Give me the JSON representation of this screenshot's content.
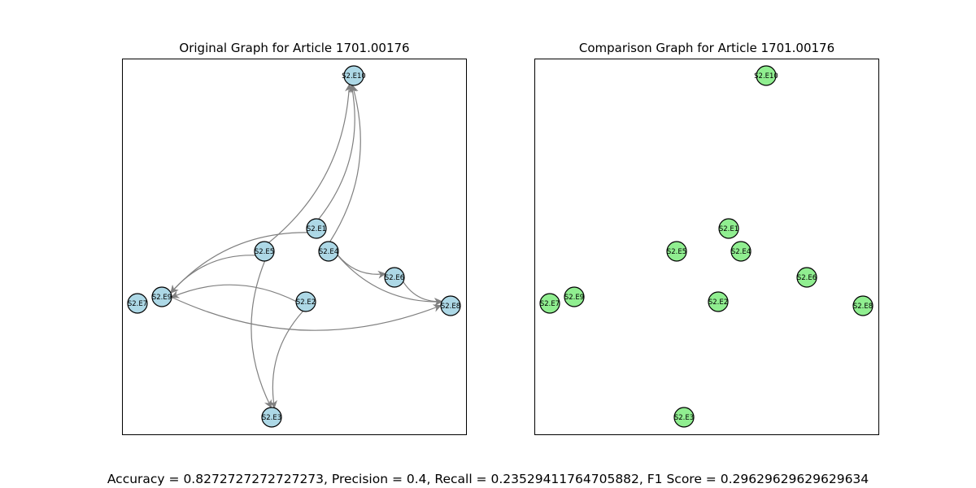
{
  "figure": {
    "metrics_text": "Accuracy = 0.8272727272727273, Precision = 0.4, Recall = 0.23529411764705882, F1 Score = 0.29629629629629634"
  },
  "panels": [
    {
      "id": "original",
      "title": "Original Graph for Article 1701.00176",
      "node_color": "#add8e6",
      "edge_color": "#808080",
      "nodes": [
        "S2.E10",
        "S2.E1",
        "S2.E5",
        "S2.E4",
        "S2.E6",
        "S2.E7",
        "S2.E9",
        "S2.E2",
        "S2.E8",
        "S2.E3"
      ],
      "edges": [
        [
          "S2.E1",
          "S2.E10"
        ],
        [
          "S2.E5",
          "S2.E10"
        ],
        [
          "S2.E4",
          "S2.E10"
        ],
        [
          "S2.E1",
          "S2.E9"
        ],
        [
          "S2.E5",
          "S2.E9"
        ],
        [
          "S2.E2",
          "S2.E9"
        ],
        [
          "S2.E4",
          "S2.E6"
        ],
        [
          "S2.E4",
          "S2.E8"
        ],
        [
          "S2.E6",
          "S2.E8"
        ],
        [
          "S2.E9",
          "S2.E8"
        ],
        [
          "S2.E5",
          "S2.E3"
        ],
        [
          "S2.E2",
          "S2.E3"
        ]
      ]
    },
    {
      "id": "comparison",
      "title": "Comparison Graph for Article 1701.00176",
      "node_color": "#90ee90",
      "edge_color": "#808080",
      "nodes": [
        "S2.E10",
        "S2.E1",
        "S2.E5",
        "S2.E4",
        "S2.E6",
        "S2.E7",
        "S2.E9",
        "S2.E2",
        "S2.E8",
        "S2.E3"
      ],
      "edges": []
    }
  ]
}
